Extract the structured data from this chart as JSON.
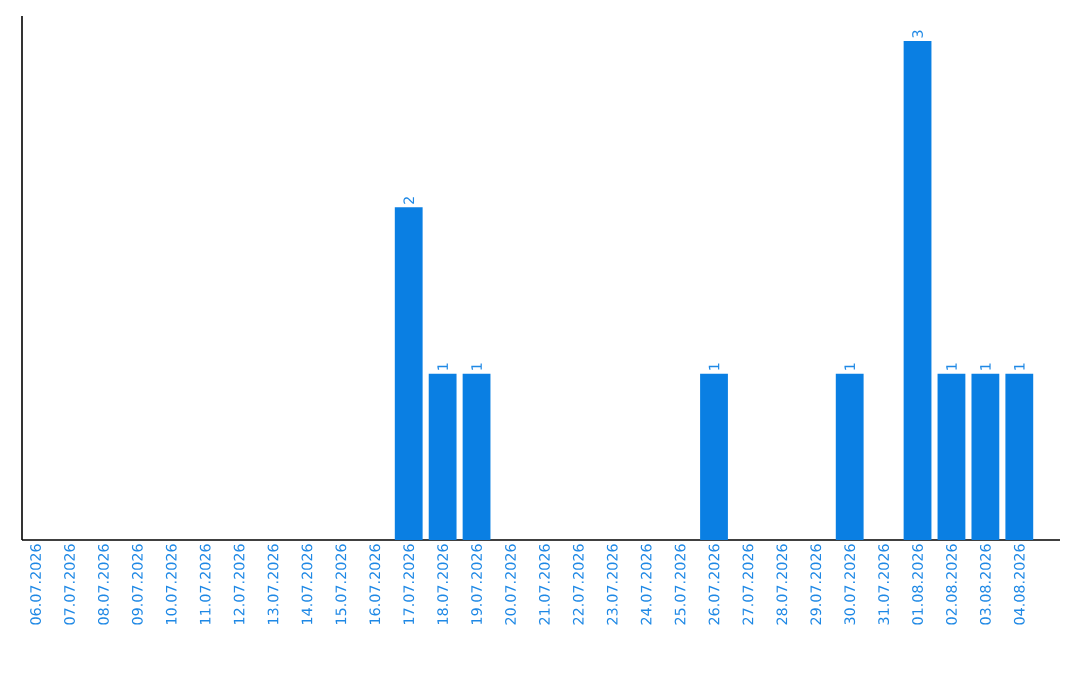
{
  "chart_data": {
    "type": "bar",
    "categories": [
      "06.07.2026",
      "07.07.2026",
      "08.07.2026",
      "09.07.2026",
      "10.07.2026",
      "11.07.2026",
      "12.07.2026",
      "13.07.2026",
      "14.07.2026",
      "15.07.2026",
      "16.07.2026",
      "17.07.2026",
      "18.07.2026",
      "19.07.2026",
      "20.07.2026",
      "21.07.2026",
      "22.07.2026",
      "23.07.2026",
      "24.07.2026",
      "25.07.2026",
      "26.07.2026",
      "27.07.2026",
      "28.07.2026",
      "29.07.2026",
      "30.07.2026",
      "31.07.2026",
      "01.08.2026",
      "02.08.2026",
      "03.08.2026",
      "04.08.2026"
    ],
    "values": [
      0,
      0,
      0,
      0,
      0,
      0,
      0,
      0,
      0,
      0,
      0,
      2,
      1,
      1,
      0,
      0,
      0,
      0,
      0,
      0,
      1,
      0,
      0,
      0,
      1,
      0,
      3,
      1,
      1,
      1
    ],
    "value_labels": [
      null,
      null,
      null,
      null,
      null,
      null,
      null,
      null,
      null,
      null,
      null,
      "2",
      "1",
      "1",
      null,
      null,
      null,
      null,
      null,
      null,
      "1",
      null,
      null,
      null,
      "1",
      null,
      "3",
      "1",
      "1",
      "1"
    ],
    "color": "#0a7fe3"
  }
}
